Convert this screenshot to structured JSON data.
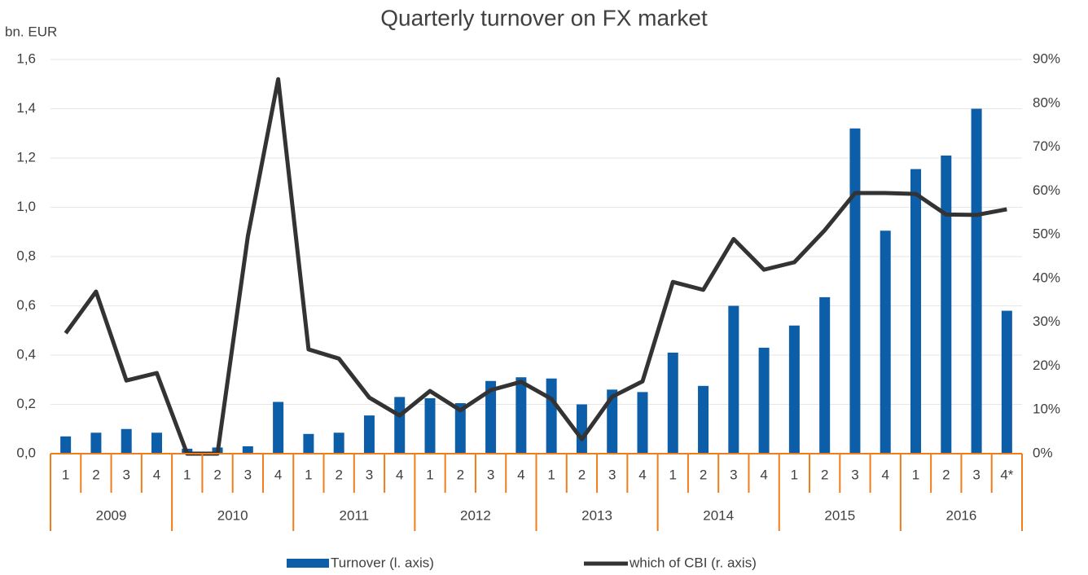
{
  "chart_data": {
    "type": "bar_line",
    "title": "Quarterly turnover on FX market",
    "y_axis_label": "bn. EUR",
    "categories": [
      "1",
      "2",
      "3",
      "4",
      "1",
      "2",
      "3",
      "4",
      "1",
      "2",
      "3",
      "4",
      "1",
      "2",
      "3",
      "4",
      "1",
      "2",
      "3",
      "4",
      "1",
      "2",
      "3",
      "4",
      "1",
      "2",
      "3",
      "4",
      "1",
      "2",
      "3",
      "4*"
    ],
    "groups": [
      "2009",
      "2010",
      "2011",
      "2012",
      "2013",
      "2014",
      "2015",
      "2016"
    ],
    "series": [
      {
        "name": "Turnover (l. axis)",
        "type": "bar",
        "color": "#0d5ea8",
        "values": [
          0.07,
          0.085,
          0.1,
          0.085,
          0.02,
          0.025,
          0.03,
          0.21,
          0.08,
          0.085,
          0.155,
          0.23,
          0.225,
          0.205,
          0.295,
          0.31,
          0.305,
          0.2,
          0.26,
          0.25,
          0.41,
          0.275,
          0.6,
          0.43,
          0.52,
          0.635,
          1.32,
          0.905,
          1.155,
          1.21,
          1.4,
          0.58
        ]
      },
      {
        "name": "which of CBI (r. axis)",
        "type": "line",
        "axis": "y2",
        "color": "#333333",
        "values": [
          27.5,
          37,
          16.7,
          18.4,
          0,
          0,
          49.6,
          85.5,
          23.8,
          21.7,
          12.8,
          8.7,
          14.3,
          9.9,
          14.5,
          16.4,
          12.5,
          3.3,
          13,
          16.5,
          39.2,
          37.4,
          49,
          42,
          43.7,
          51,
          59.5,
          59.5,
          59.3,
          54.6,
          54.5,
          55.8
        ]
      }
    ],
    "ylim": [
      0,
      1.6
    ],
    "yticks": [
      {
        "value": 0,
        "label": "0,0"
      },
      {
        "value": 0.2,
        "label": "0,2"
      },
      {
        "value": 0.4,
        "label": "0,4"
      },
      {
        "value": 0.6,
        "label": "0,6"
      },
      {
        "value": 0.8,
        "label": "0,8"
      },
      {
        "value": 1.0,
        "label": "1,0"
      },
      {
        "value": 1.2,
        "label": "1,2"
      },
      {
        "value": 1.4,
        "label": "1,4"
      },
      {
        "value": 1.6,
        "label": "1,6"
      }
    ],
    "y2lim": [
      0,
      90
    ],
    "y2ticks": [
      {
        "value": 0,
        "label": "0%"
      },
      {
        "value": 10,
        "label": "10%"
      },
      {
        "value": 20,
        "label": "20%"
      },
      {
        "value": 30,
        "label": "30%"
      },
      {
        "value": 40,
        "label": "40%"
      },
      {
        "value": 50,
        "label": "50%"
      },
      {
        "value": 60,
        "label": "60%"
      },
      {
        "value": 70,
        "label": "70%"
      },
      {
        "value": 80,
        "label": "80%"
      },
      {
        "value": 90,
        "label": "90%"
      }
    ],
    "grid": true,
    "axis_color": "#f07d1a",
    "legend": "bottom"
  }
}
